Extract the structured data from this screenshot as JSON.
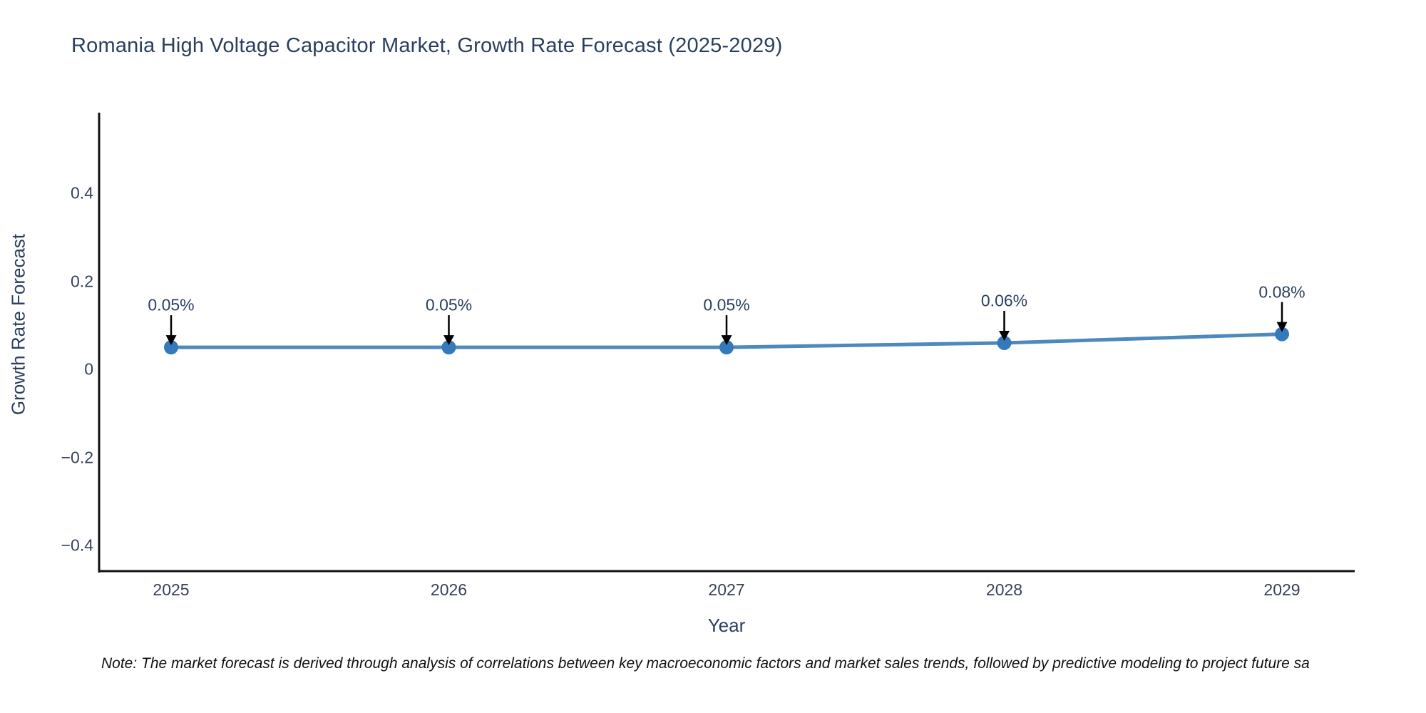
{
  "title": "Romania High Voltage Capacitor Market, Growth Rate Forecast (2025-2029)",
  "note": "Note: The market forecast is derived through analysis of correlations between key macroeconomic factors and market sales trends, followed by predictive modeling to project future sa",
  "chart_data": {
    "type": "line",
    "title": "Romania High Voltage Capacitor Market, Growth Rate Forecast (2025-2029)",
    "xlabel": "Year",
    "ylabel": "Growth Rate Forecast",
    "categories": [
      "2025",
      "2026",
      "2027",
      "2028",
      "2029"
    ],
    "series": [
      {
        "name": "Growth Rate Forecast",
        "values": [
          0.05,
          0.05,
          0.05,
          0.06,
          0.08
        ],
        "point_labels": [
          "0.05%",
          "0.05%",
          "0.05%",
          "0.06%",
          "0.08%"
        ]
      }
    ],
    "y_ticks": [
      {
        "label": "0.4",
        "value": 0.4
      },
      {
        "label": "0.2",
        "value": 0.2
      },
      {
        "label": "0",
        "value": 0.0
      },
      {
        "label": "−0.2",
        "value": -0.2
      },
      {
        "label": "−0.4",
        "value": -0.4
      }
    ],
    "ylim": [
      -0.46,
      0.58
    ],
    "grid": false,
    "legend_position": "none",
    "colors": {
      "line": "#4e89bd",
      "marker": "#3579bd",
      "axis": "#111111",
      "arrow": "#000000",
      "text": "#2a3f5f",
      "background": "#ffffff"
    }
  }
}
